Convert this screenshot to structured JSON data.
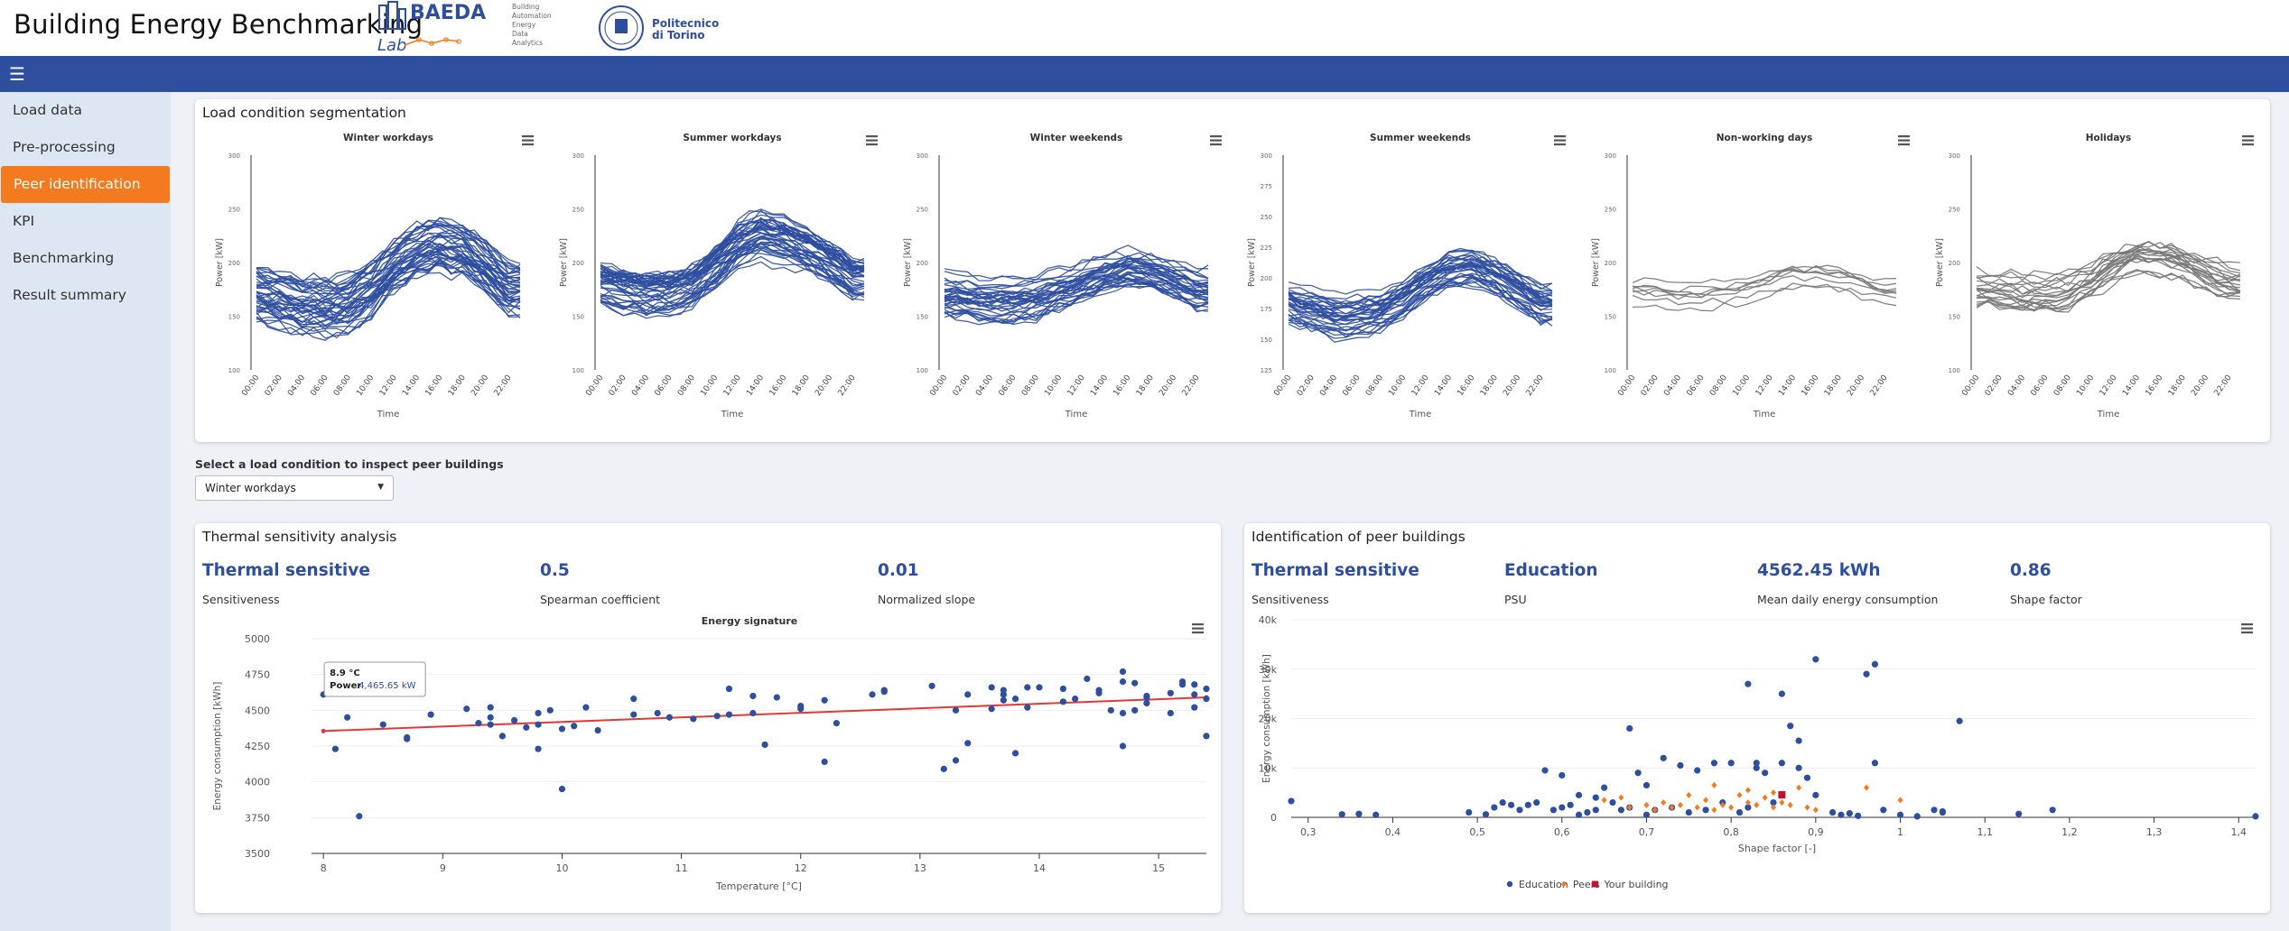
{
  "app": {
    "title": "Building Energy Benchmarking",
    "logo_baeda_name": "BAEDA",
    "logo_baeda_sub": "Lab",
    "logo_baeda_words": [
      "Building",
      "Automation",
      "Energy",
      "Data",
      "Analytics"
    ],
    "logo_polito_text_1": "Politecnico",
    "logo_polito_text_2": "di Torino"
  },
  "topbar": {
    "menu_icon": "hamburger-icon",
    "color": "#2e4e9e"
  },
  "sidebar": {
    "items": [
      {
        "label": "Load data",
        "active": false
      },
      {
        "label": "Pre-processing",
        "active": false
      },
      {
        "label": "Peer identification",
        "active": true
      },
      {
        "label": "KPI",
        "active": false
      },
      {
        "label": "Benchmarking",
        "active": false
      },
      {
        "label": "Result summary",
        "active": false
      }
    ],
    "active_color": "#f47a1f"
  },
  "segmentation": {
    "title": "Load condition segmentation",
    "x_ticks": [
      "00:00",
      "02:00",
      "04:00",
      "06:00",
      "08:00",
      "10:00",
      "12:00",
      "14:00",
      "16:00",
      "18:00",
      "20:00",
      "22:00"
    ]
  },
  "chart_data": [
    {
      "type": "line",
      "title": "Winter workdays",
      "xlabel": "Time",
      "ylabel": "Power [kW]",
      "ylim": [
        100,
        300
      ],
      "yticks": [
        100,
        150,
        200,
        250,
        300
      ],
      "color": "#2e4e9e",
      "n_profiles": 45,
      "mean_profile": [
        170,
        165,
        160,
        158,
        160,
        175,
        195,
        210,
        215,
        210,
        195,
        175
      ],
      "spread": 22
    },
    {
      "type": "line",
      "title": "Summer workdays",
      "xlabel": "Time",
      "ylabel": "Power [kW]",
      "ylim": [
        100,
        300
      ],
      "yticks": [
        100,
        150,
        200,
        250,
        300
      ],
      "color": "#2e4e9e",
      "n_profiles": 45,
      "mean_profile": [
        180,
        175,
        172,
        172,
        178,
        195,
        215,
        225,
        220,
        212,
        200,
        185
      ],
      "spread": 18
    },
    {
      "type": "line",
      "title": "Winter weekends",
      "xlabel": "Time",
      "ylabel": "Power [kW]",
      "ylim": [
        100,
        300
      ],
      "yticks": [
        100,
        150,
        200,
        250,
        300
      ],
      "color": "#2e4e9e",
      "n_profiles": 35,
      "mean_profile": [
        170,
        168,
        165,
        165,
        168,
        175,
        182,
        190,
        195,
        192,
        185,
        175
      ],
      "spread": 16
    },
    {
      "type": "line",
      "title": "Summer weekends",
      "xlabel": "Time",
      "ylabel": "Power [kW]",
      "ylim": [
        125,
        300
      ],
      "yticks": [
        125,
        150,
        175,
        200,
        225,
        250,
        275,
        300
      ],
      "color": "#2e4e9e",
      "n_profiles": 35,
      "mean_profile": [
        178,
        172,
        168,
        168,
        172,
        182,
        195,
        205,
        208,
        200,
        190,
        178
      ],
      "spread": 14
    },
    {
      "type": "line",
      "title": "Non-working days",
      "xlabel": "Time",
      "ylabel": "Power [kW]",
      "ylim": [
        100,
        300
      ],
      "yticks": [
        100,
        150,
        200,
        250,
        300
      ],
      "color": "#777777",
      "n_profiles": 8,
      "mean_profile": [
        170,
        168,
        166,
        166,
        168,
        172,
        178,
        185,
        185,
        182,
        176,
        170
      ],
      "spread": 12
    },
    {
      "type": "line",
      "title": "Holidays",
      "xlabel": "Time",
      "ylabel": "Power [kW]",
      "ylim": [
        100,
        300
      ],
      "yticks": [
        100,
        150,
        200,
        250,
        300
      ],
      "color": "#777777",
      "n_profiles": 20,
      "mean_profile": [
        172,
        170,
        168,
        168,
        170,
        180,
        195,
        205,
        205,
        198,
        188,
        178
      ],
      "spread": 18
    },
    {
      "type": "scatter",
      "title": "Energy signature",
      "xlabel": "Temperature [°C]",
      "ylabel": "Energy consumption [kWh]",
      "xlim": [
        7.9,
        15.4
      ],
      "ylim": [
        3500,
        5000
      ],
      "xticks": [
        8,
        9,
        10,
        11,
        12,
        13,
        14,
        15
      ],
      "yticks": [
        3500,
        3750,
        4000,
        4250,
        4500,
        4750,
        5000
      ],
      "points": [
        [
          8.0,
          4610
        ],
        [
          8.1,
          4230
        ],
        [
          8.2,
          4450
        ],
        [
          8.3,
          3760
        ],
        [
          8.5,
          4400
        ],
        [
          8.7,
          4300
        ],
        [
          8.7,
          4310
        ],
        [
          8.9,
          4470
        ],
        [
          9.2,
          4510
        ],
        [
          9.3,
          4410
        ],
        [
          9.4,
          4520
        ],
        [
          9.4,
          4450
        ],
        [
          9.4,
          4400
        ],
        [
          9.5,
          4320
        ],
        [
          9.6,
          4430
        ],
        [
          9.7,
          4380
        ],
        [
          9.8,
          4480
        ],
        [
          9.8,
          4400
        ],
        [
          9.8,
          4230
        ],
        [
          9.9,
          4500
        ],
        [
          10.0,
          3950
        ],
        [
          10.0,
          4370
        ],
        [
          10.1,
          4390
        ],
        [
          10.2,
          4520
        ],
        [
          10.3,
          4360
        ],
        [
          10.6,
          4470
        ],
        [
          10.6,
          4580
        ],
        [
          10.8,
          4480
        ],
        [
          10.9,
          4450
        ],
        [
          11.1,
          4440
        ],
        [
          11.3,
          4460
        ],
        [
          11.4,
          4470
        ],
        [
          11.4,
          4650
        ],
        [
          11.6,
          4480
        ],
        [
          11.6,
          4600
        ],
        [
          11.7,
          4260
        ],
        [
          11.8,
          4590
        ],
        [
          12.0,
          4530
        ],
        [
          12.0,
          4510
        ],
        [
          12.2,
          4570
        ],
        [
          12.2,
          4140
        ],
        [
          12.3,
          4410
        ],
        [
          12.6,
          4610
        ],
        [
          12.7,
          4630
        ],
        [
          12.7,
          4640
        ],
        [
          13.1,
          4670
        ],
        [
          13.2,
          4090
        ],
        [
          13.3,
          4150
        ],
        [
          13.3,
          4500
        ],
        [
          13.4,
          4610
        ],
        [
          13.4,
          4270
        ],
        [
          13.6,
          4510
        ],
        [
          13.6,
          4660
        ],
        [
          13.7,
          4640
        ],
        [
          13.7,
          4610
        ],
        [
          13.7,
          4570
        ],
        [
          13.8,
          4200
        ],
        [
          13.8,
          4580
        ],
        [
          13.9,
          4660
        ],
        [
          13.9,
          4520
        ],
        [
          14.0,
          4660
        ],
        [
          14.2,
          4560
        ],
        [
          14.2,
          4650
        ],
        [
          14.3,
          4580
        ],
        [
          14.4,
          4720
        ],
        [
          14.5,
          4620
        ],
        [
          14.5,
          4640
        ],
        [
          14.6,
          4500
        ],
        [
          14.7,
          4480
        ],
        [
          14.7,
          4250
        ],
        [
          14.8,
          4500
        ],
        [
          14.9,
          4600
        ],
        [
          14.9,
          4550
        ],
        [
          14.9,
          4590
        ],
        [
          15.1,
          4620
        ],
        [
          15.1,
          4480
        ],
        [
          15.2,
          4700
        ],
        [
          15.3,
          4520
        ],
        [
          15.3,
          4680
        ],
        [
          15.3,
          4610
        ],
        [
          15.4,
          4650
        ],
        [
          15.4,
          4580
        ],
        [
          15.4,
          4320
        ],
        [
          14.7,
          4770
        ],
        [
          14.7,
          4700
        ],
        [
          14.8,
          4690
        ],
        [
          15.2,
          4680
        ]
      ],
      "regression": {
        "from": [
          8.0,
          4355
        ],
        "to": [
          15.4,
          4590
        ],
        "color": "#e53935"
      },
      "tooltip": {
        "title": "8.9 °C",
        "label": "Power",
        "value": "4,465.65 kW",
        "temperature": 8.9
      }
    },
    {
      "type": "scatter",
      "title": "",
      "xlabel": "Shape factor [-]",
      "ylabel": "Energy consumption [kWh]",
      "xlim": [
        0.28,
        1.42
      ],
      "ylim": [
        0,
        40000
      ],
      "xticks": [
        0.3,
        0.4,
        0.5,
        0.6,
        0.7,
        0.8,
        0.9,
        1.0,
        1.1,
        1.2,
        1.3,
        1.4
      ],
      "xtick_labels": [
        "0,3",
        "0,4",
        "0,5",
        "0,6",
        "0,7",
        "0,8",
        "0,9",
        "1",
        "1,1",
        "1,2",
        "1,3",
        "1,4"
      ],
      "yticks": [
        0,
        10000,
        20000,
        30000,
        40000
      ],
      "ytick_labels": [
        "0",
        "10k",
        "20k",
        "30k",
        "40k"
      ],
      "series": [
        {
          "name": "Education",
          "color": "#2e4e9e",
          "marker": "circle",
          "points": [
            [
              0.28,
              3300
            ],
            [
              0.34,
              600
            ],
            [
              0.36,
              700
            ],
            [
              0.38,
              500
            ],
            [
              0.49,
              1000
            ],
            [
              0.51,
              600
            ],
            [
              0.52,
              2000
            ],
            [
              0.53,
              3000
            ],
            [
              0.54,
              2500
            ],
            [
              0.55,
              1500
            ],
            [
              0.56,
              2500
            ],
            [
              0.57,
              3000
            ],
            [
              0.58,
              9500
            ],
            [
              0.59,
              1500
            ],
            [
              0.6,
              8500
            ],
            [
              0.6,
              2000
            ],
            [
              0.61,
              2500
            ],
            [
              0.62,
              500
            ],
            [
              0.63,
              1000
            ],
            [
              0.64,
              4000
            ],
            [
              0.65,
              6000
            ],
            [
              0.66,
              3000
            ],
            [
              0.67,
              1500
            ],
            [
              0.68,
              2000
            ],
            [
              0.68,
              18000
            ],
            [
              0.69,
              9000
            ],
            [
              0.7,
              6500
            ],
            [
              0.7,
              500
            ],
            [
              0.71,
              1500
            ],
            [
              0.72,
              12000
            ],
            [
              0.73,
              2000
            ],
            [
              0.74,
              10500
            ],
            [
              0.75,
              1000
            ],
            [
              0.76,
              9500
            ],
            [
              0.77,
              1500
            ],
            [
              0.78,
              11000
            ],
            [
              0.79,
              3000
            ],
            [
              0.8,
              11000
            ],
            [
              0.81,
              1000
            ],
            [
              0.82,
              27000
            ],
            [
              0.82,
              2000
            ],
            [
              0.83,
              10000
            ],
            [
              0.83,
              11000
            ],
            [
              0.84,
              9000
            ],
            [
              0.85,
              3000
            ],
            [
              0.86,
              11000
            ],
            [
              0.86,
              25000
            ],
            [
              0.87,
              18500
            ],
            [
              0.88,
              15500
            ],
            [
              0.88,
              10000
            ],
            [
              0.89,
              8000
            ],
            [
              0.9,
              32000
            ],
            [
              0.9,
              4500
            ],
            [
              0.92,
              1000
            ],
            [
              0.93,
              500
            ],
            [
              0.94,
              800
            ],
            [
              0.95,
              300
            ],
            [
              0.96,
              29000
            ],
            [
              0.97,
              31000
            ],
            [
              0.97,
              11000
            ],
            [
              0.98,
              1500
            ],
            [
              1.0,
              500
            ],
            [
              1.02,
              200
            ],
            [
              1.04,
              1500
            ],
            [
              1.05,
              1000
            ],
            [
              1.05,
              1200
            ],
            [
              1.07,
              19500
            ],
            [
              1.14,
              700
            ],
            [
              1.18,
              1500
            ],
            [
              1.42,
              200
            ],
            [
              0.62,
              4500
            ],
            [
              0.64,
              1500
            ]
          ]
        },
        {
          "name": "Peers",
          "color": "#f47a1f",
          "marker": "diamond",
          "points": [
            [
              0.65,
              3500
            ],
            [
              0.67,
              4000
            ],
            [
              0.68,
              2000
            ],
            [
              0.7,
              2500
            ],
            [
              0.71,
              1500
            ],
            [
              0.72,
              3000
            ],
            [
              0.73,
              2000
            ],
            [
              0.74,
              2500
            ],
            [
              0.75,
              4500
            ],
            [
              0.76,
              2000
            ],
            [
              0.77,
              3500
            ],
            [
              0.78,
              6500
            ],
            [
              0.79,
              2500
            ],
            [
              0.8,
              2000
            ],
            [
              0.81,
              4500
            ],
            [
              0.82,
              3000
            ],
            [
              0.83,
              2500
            ],
            [
              0.84,
              4000
            ],
            [
              0.85,
              2000
            ],
            [
              0.86,
              3000
            ],
            [
              0.87,
              2500
            ],
            [
              0.88,
              6000
            ],
            [
              0.89,
              2000
            ],
            [
              0.9,
              1500
            ],
            [
              0.96,
              6000
            ],
            [
              1.0,
              3500
            ],
            [
              0.78,
              1500
            ],
            [
              0.85,
              5000
            ],
            [
              0.82,
              5500
            ]
          ]
        },
        {
          "name": "Your building",
          "color": "#c8102e",
          "marker": "square",
          "points": [
            [
              0.86,
              4562
            ]
          ]
        }
      ]
    }
  ],
  "select": {
    "label": "Select a load condition to inspect peer buildings",
    "value": "Winter workdays"
  },
  "thermal": {
    "title": "Thermal sensitivity analysis",
    "kpis": [
      {
        "value": "Thermal sensitive",
        "label": "Sensitiveness"
      },
      {
        "value": "0.5",
        "label": "Spearman coefficient"
      },
      {
        "value": "0.01",
        "label": "Normalized slope"
      }
    ]
  },
  "peers": {
    "title": "Identification of peer buildings",
    "kpis": [
      {
        "value": "Thermal sensitive",
        "label": "Sensitiveness"
      },
      {
        "value": "Education",
        "label": "PSU"
      },
      {
        "value": "4562.45 kWh",
        "label": "Mean daily energy consumption"
      },
      {
        "value": "0.86",
        "label": "Shape factor"
      }
    ]
  }
}
